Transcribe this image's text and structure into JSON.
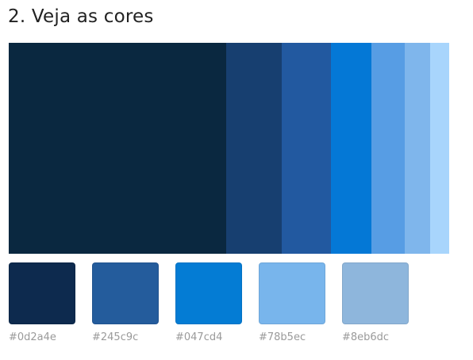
{
  "title": "2. Veja as cores",
  "band": [
    {
      "color": "#0a2840",
      "weight": 274
    },
    {
      "color": "#173f70",
      "weight": 70
    },
    {
      "color": "#2259a0",
      "weight": 62
    },
    {
      "color": "#0478d6",
      "weight": 51
    },
    {
      "color": "#579de4",
      "weight": 42
    },
    {
      "color": "#7fb6ec",
      "weight": 32
    },
    {
      "color": "#a8d5fc",
      "weight": 24
    }
  ],
  "swatches": [
    {
      "hex": "#0d2a4e",
      "label": "#0d2a4e"
    },
    {
      "hex": "#245c9c",
      "label": "#245c9c"
    },
    {
      "hex": "#047cd4",
      "label": "#047cd4"
    },
    {
      "hex": "#78b5ec",
      "label": "#78b5ec"
    },
    {
      "hex": "#8eb6dc",
      "label": "#8eb6dc"
    }
  ]
}
